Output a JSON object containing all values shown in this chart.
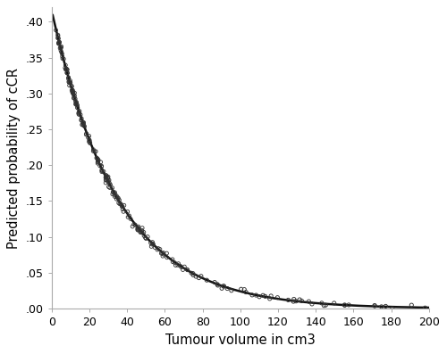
{
  "title": "",
  "xlabel": "Tumour volume in cm3",
  "ylabel": "Predicted probability of cCR",
  "xlim": [
    0,
    200
  ],
  "ylim": [
    0.0,
    0.42
  ],
  "ylim_display": [
    0.0,
    0.4
  ],
  "xticks": [
    0,
    20,
    40,
    60,
    80,
    100,
    120,
    140,
    160,
    180,
    200
  ],
  "yticks": [
    0.0,
    0.05,
    0.1,
    0.15,
    0.2,
    0.25,
    0.3,
    0.35,
    0.4
  ],
  "ytick_labels": [
    ".00",
    ".05",
    ".10",
    ".15",
    ".20",
    ".25",
    ".30",
    ".35",
    ".40"
  ],
  "curve_color": "#111111",
  "scatter_edgecolor": "#333333",
  "scatter_facecolor": "none",
  "background_color": "#ffffff",
  "exp_a": 0.415,
  "exp_b": -0.0285,
  "xlabel_fontsize": 10.5,
  "ylabel_fontsize": 10.5,
  "tick_fontsize": 9,
  "spine_color": "#aaaaaa",
  "curve_linewidth": 1.8
}
